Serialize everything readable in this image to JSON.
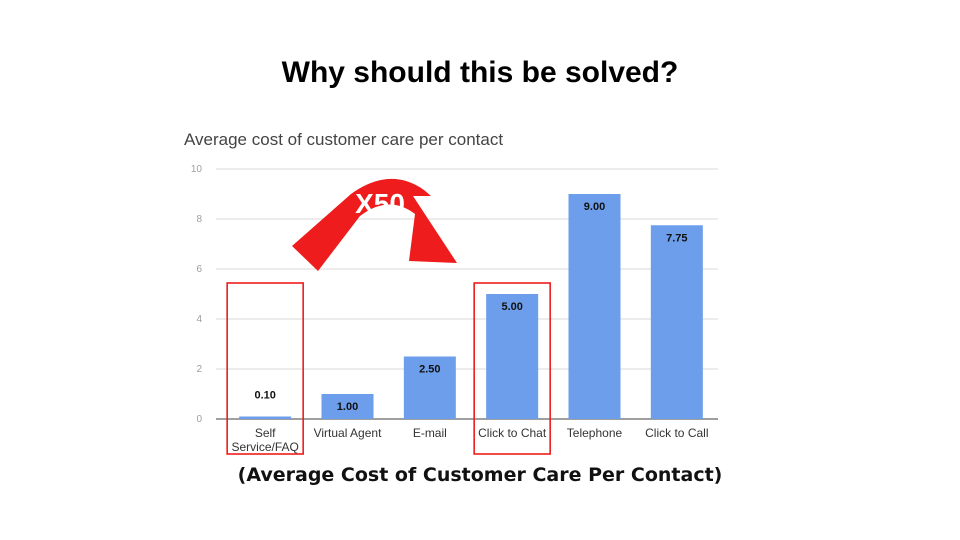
{
  "slide": {
    "title": "Why should this be solved?",
    "caption": "(Average Cost of Customer Care Per Contact)"
  },
  "annotation": {
    "arrow_label": "X50",
    "highlight_color": "#ee1c1c"
  },
  "colors": {
    "bar": "#6d9eeb",
    "grid": "#d9d9d9",
    "axis": "#666666"
  },
  "chart_data": {
    "type": "bar",
    "title": "Average cost of customer care per contact",
    "categories": [
      [
        "Self",
        "Service/FAQ"
      ],
      [
        "Virtual Agent"
      ],
      [
        "E-mail"
      ],
      [
        "Click to Chat"
      ],
      [
        "Telephone"
      ],
      [
        "Click to Call"
      ]
    ],
    "values": [
      0.1,
      1.0,
      2.5,
      5.0,
      9.0,
      7.75
    ],
    "value_labels": [
      "0.10",
      "1.00",
      "2.50",
      "5.00",
      "9.00",
      "7.75"
    ],
    "ylim": [
      0,
      10
    ],
    "yticks": [
      "0",
      "2",
      "4",
      "6",
      "8",
      "10"
    ],
    "xlabel": "",
    "ylabel": "",
    "grid": true,
    "highlighted_categories": [
      0,
      3
    ]
  }
}
